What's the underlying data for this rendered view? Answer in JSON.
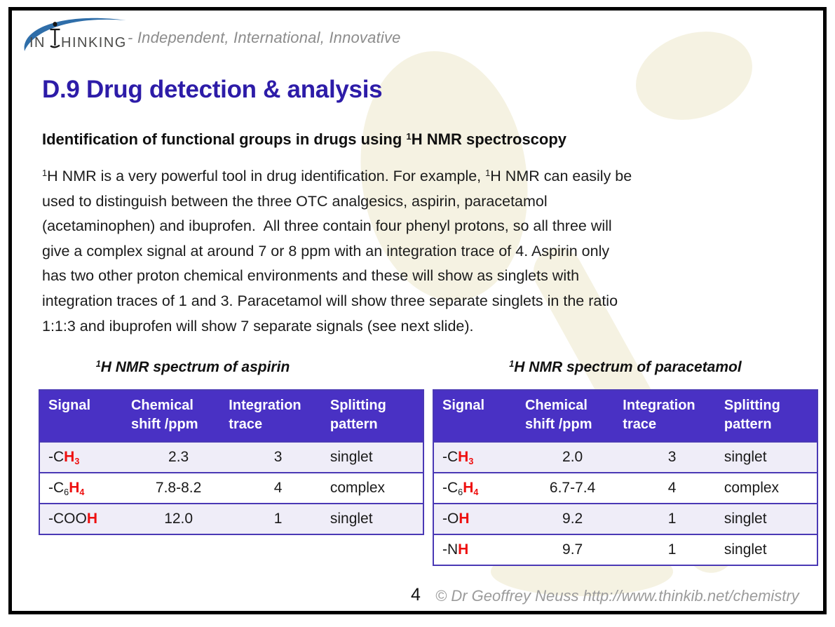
{
  "page": {
    "logo": {
      "brand_prefix": "IN",
      "brand_suffix": "HINKING",
      "tagline": "- Independent, International, Innovative"
    },
    "title": "D.9 Drug detection & analysis",
    "subtitle": [
      {
        "t": "Identification of functional groups in drugs using "
      },
      {
        "t": "1",
        "sup": true
      },
      {
        "t": "H NMR spectroscopy"
      }
    ],
    "paragraph": [
      {
        "t": "1",
        "sup": true
      },
      {
        "t": "H NMR is a very powerful tool in drug identification. For example, "
      },
      {
        "t": "1",
        "sup": true
      },
      {
        "t": "H NMR can easily be"
      },
      {
        "br": true
      },
      {
        "t": "used to distinguish between the three OTC analgesics, aspirin, paracetamol"
      },
      {
        "br": true
      },
      {
        "t": "(acetaminophen) and ibuprofen.  All three contain four phenyl protons, so all three will"
      },
      {
        "br": true
      },
      {
        "t": "give a complex signal at around 7 or 8 ppm with an integration trace of 4. Aspirin only"
      },
      {
        "br": true
      },
      {
        "t": "has two other proton chemical environments and these will show as singlets with"
      },
      {
        "br": true
      },
      {
        "t": "integration traces of 1 and 3. Paracetamol will show three separate singlets in the ratio"
      },
      {
        "br": true
      },
      {
        "t": "1:1:3 and ibuprofen will show 7 separate signals (see next slide)."
      }
    ],
    "footer": {
      "page_number": "4",
      "copyright": "© Dr Geoffrey Neuss http://www.thinkib.net/chemistry"
    },
    "colors": {
      "title": "#2d1ca8",
      "table_header_bg": "#4931c4",
      "table_border": "#4a39b5",
      "row_alt_bg": "#efedf8",
      "highlight_red": "#ee0f0f",
      "logo_blue": "#2f6ea9"
    }
  },
  "tables": [
    {
      "title": [
        {
          "t": "1",
          "sup": true
        },
        {
          "t": "H NMR spectrum of aspirin"
        }
      ],
      "headers": [
        "Signal",
        "Chemical shift /ppm",
        "Integration trace",
        "Splitting pattern"
      ],
      "rows": [
        {
          "signal": [
            {
              "t": "-C"
            },
            {
              "t": "H",
              "red": true
            },
            {
              "t": "3",
              "red": true,
              "sub": true
            }
          ],
          "shift": "2.3",
          "integration": "3",
          "splitting": "singlet"
        },
        {
          "signal": [
            {
              "t": "-C"
            },
            {
              "t": "6",
              "sub": true
            },
            {
              "t": "H",
              "red": true
            },
            {
              "t": "4",
              "red": true,
              "sub": true
            }
          ],
          "shift": "7.8-8.2",
          "integration": "4",
          "splitting": "complex"
        },
        {
          "signal": [
            {
              "t": "-COO"
            },
            {
              "t": "H",
              "red": true
            }
          ],
          "shift": "12.0",
          "integration": "1",
          "splitting": "singlet"
        }
      ]
    },
    {
      "title": [
        {
          "t": "1",
          "sup": true
        },
        {
          "t": "H NMR spectrum of paracetamol"
        }
      ],
      "headers": [
        "Signal",
        "Chemical shift /ppm",
        "Integration trace",
        "Splitting pattern"
      ],
      "rows": [
        {
          "signal": [
            {
              "t": "-C"
            },
            {
              "t": "H",
              "red": true
            },
            {
              "t": "3",
              "red": true,
              "sub": true
            }
          ],
          "shift": "2.0",
          "integration": "3",
          "splitting": "singlet"
        },
        {
          "signal": [
            {
              "t": "-C"
            },
            {
              "t": "6",
              "sub": true
            },
            {
              "t": "H",
              "red": true
            },
            {
              "t": "4",
              "red": true,
              "sub": true
            }
          ],
          "shift": "6.7-7.4",
          "integration": "4",
          "splitting": "complex"
        },
        {
          "signal": [
            {
              "t": "-O"
            },
            {
              "t": "H",
              "red": true
            }
          ],
          "shift": "9.2",
          "integration": "1",
          "splitting": "singlet"
        },
        {
          "signal": [
            {
              "t": "-N"
            },
            {
              "t": "H",
              "red": true
            }
          ],
          "shift": "9.7",
          "integration": "1",
          "splitting": "singlet"
        }
      ]
    }
  ]
}
